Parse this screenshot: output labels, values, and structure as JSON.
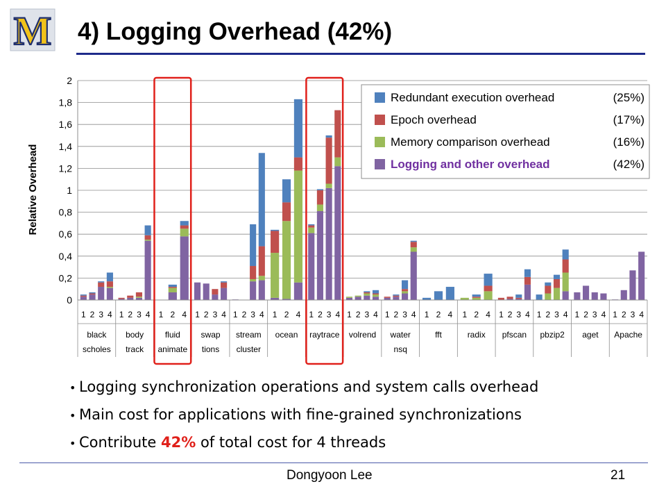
{
  "slide": {
    "title": "4) Logging Overhead (42%)",
    "logo_text": "M",
    "bullets": [
      {
        "pre": "Logging synchronization operations and system calls overhead",
        "hl": "",
        "post": ""
      },
      {
        "pre": "Main cost for applications with fine-grained synchronizations",
        "hl": "",
        "post": ""
      },
      {
        "pre": "Contribute ",
        "hl": "42%",
        "post": " of total cost for 4 threads"
      }
    ],
    "footer_author": "Dongyoon Lee",
    "page_number": "21"
  },
  "colors": {
    "redundant": "#4f81bd",
    "epoch": "#c0504d",
    "memory": "#9bbb59",
    "logging": "#8064a2",
    "logging_label": "#7030a0",
    "highlight_box": "#e0201a",
    "accent_rule": "#1e2a8a"
  },
  "chart_data": {
    "type": "bar",
    "stacked": true,
    "ylabel": "Relative Overhead",
    "ylim": [
      0,
      2
    ],
    "yticks": [
      "0",
      "0,2",
      "0,4",
      "0,6",
      "0,8",
      "1",
      "1,2",
      "1,4",
      "1,6",
      "1,8",
      "2"
    ],
    "legend": [
      {
        "key": "redundant",
        "label": "Redundant execution overhead",
        "pct": "(25%)"
      },
      {
        "key": "epoch",
        "label": "Epoch overhead",
        "pct": "(17%)"
      },
      {
        "key": "memory",
        "label": "Memory comparison overhead",
        "pct": "(16%)"
      },
      {
        "key": "logging",
        "label": "Logging and other overhead",
        "pct": "(42%)"
      }
    ],
    "series_order": [
      "logging",
      "memory",
      "epoch",
      "redundant"
    ],
    "highlighted_groups": [
      "fluid animate",
      "raytrace"
    ],
    "groups": [
      {
        "name": "black scholes",
        "line1": "black",
        "line2": "scholes",
        "bars": [
          {
            "label": "1",
            "logging": 0.03,
            "memory": 0.0,
            "epoch": 0.01,
            "redundant": 0.01
          },
          {
            "label": "2",
            "logging": 0.05,
            "memory": 0.0,
            "epoch": 0.01,
            "redundant": 0.01
          },
          {
            "label": "3",
            "logging": 0.12,
            "memory": 0.0,
            "epoch": 0.04,
            "redundant": 0.01
          },
          {
            "label": "4",
            "logging": 0.11,
            "memory": 0.01,
            "epoch": 0.05,
            "redundant": 0.08
          }
        ]
      },
      {
        "name": "body track",
        "line1": "body",
        "line2": "track",
        "bars": [
          {
            "label": "1",
            "logging": 0.01,
            "memory": 0.0,
            "epoch": 0.01,
            "redundant": 0.0
          },
          {
            "label": "2",
            "logging": 0.02,
            "memory": 0.0,
            "epoch": 0.02,
            "redundant": 0.0
          },
          {
            "label": "3",
            "logging": 0.02,
            "memory": 0.01,
            "epoch": 0.04,
            "redundant": 0.0
          },
          {
            "label": "4",
            "logging": 0.54,
            "memory": 0.01,
            "epoch": 0.04,
            "redundant": 0.09
          }
        ]
      },
      {
        "name": "fluid animate",
        "line1": "fluid",
        "line2": "animate",
        "bars": [
          {
            "label": "1",
            "logging": 0.0,
            "memory": 0.0,
            "epoch": 0.0,
            "redundant": 0.0
          },
          {
            "label": "2",
            "logging": 0.07,
            "memory": 0.04,
            "epoch": 0.01,
            "redundant": 0.02
          },
          {
            "label": "4",
            "logging": 0.58,
            "memory": 0.07,
            "epoch": 0.03,
            "redundant": 0.04
          }
        ]
      },
      {
        "name": "swap tions",
        "line1": "swap",
        "line2": "tions",
        "bars": [
          {
            "label": "1",
            "logging": 0.16,
            "memory": 0.0,
            "epoch": 0.0,
            "redundant": 0.0
          },
          {
            "label": "2",
            "logging": 0.15,
            "memory": 0.0,
            "epoch": 0.0,
            "redundant": 0.0
          },
          {
            "label": "3",
            "logging": 0.05,
            "memory": 0.0,
            "epoch": 0.05,
            "redundant": 0.0
          },
          {
            "label": "4",
            "logging": 0.11,
            "memory": 0.0,
            "epoch": 0.05,
            "redundant": 0.01
          }
        ]
      },
      {
        "name": "stream cluster",
        "line1": "stream",
        "line2": "cluster",
        "bars": [
          {
            "label": "1",
            "logging": 0.005,
            "memory": 0.0,
            "epoch": 0.0,
            "redundant": 0.0
          },
          {
            "label": "2",
            "logging": 0.0,
            "memory": 0.0,
            "epoch": 0.0,
            "redundant": 0.0
          },
          {
            "label": "3",
            "logging": 0.17,
            "memory": 0.02,
            "epoch": 0.12,
            "redundant": 0.38
          },
          {
            "label": "4",
            "logging": 0.18,
            "memory": 0.04,
            "epoch": 0.27,
            "redundant": 0.85
          }
        ]
      },
      {
        "name": "ocean",
        "line1": "ocean",
        "line2": "",
        "bars": [
          {
            "label": "1",
            "logging": 0.02,
            "memory": 0.41,
            "epoch": 0.2,
            "redundant": 0.01
          },
          {
            "label": "2",
            "logging": 0.01,
            "memory": 0.71,
            "epoch": 0.17,
            "redundant": 0.21
          },
          {
            "label": "4",
            "logging": 0.16,
            "memory": 1.02,
            "epoch": 0.12,
            "redundant": 0.53
          }
        ]
      },
      {
        "name": "raytrace",
        "line1": "raytrace",
        "line2": "",
        "bars": [
          {
            "label": "1",
            "logging": 0.61,
            "memory": 0.05,
            "epoch": 0.02,
            "redundant": 0.01
          },
          {
            "label": "2",
            "logging": 0.81,
            "memory": 0.06,
            "epoch": 0.13,
            "redundant": 0.01
          },
          {
            "label": "3",
            "logging": 1.02,
            "memory": 0.04,
            "epoch": 0.42,
            "redundant": 0.02
          },
          {
            "label": "4",
            "logging": 1.22,
            "memory": 0.08,
            "epoch": 0.43,
            "redundant": 0.0
          }
        ]
      },
      {
        "name": "volrend",
        "line1": "volrend",
        "line2": "",
        "bars": [
          {
            "label": "1",
            "logging": 0.02,
            "memory": 0.01,
            "epoch": 0.0,
            "redundant": 0.0
          },
          {
            "label": "2",
            "logging": 0.03,
            "memory": 0.01,
            "epoch": 0.0,
            "redundant": 0.0
          },
          {
            "label": "3",
            "logging": 0.04,
            "memory": 0.02,
            "epoch": 0.01,
            "redundant": 0.01
          },
          {
            "label": "4",
            "logging": 0.03,
            "memory": 0.02,
            "epoch": 0.01,
            "redundant": 0.03
          }
        ]
      },
      {
        "name": "water nsq",
        "line1": "water",
        "line2": "nsq",
        "bars": [
          {
            "label": "1",
            "logging": 0.02,
            "memory": 0.0,
            "epoch": 0.01,
            "redundant": 0.0
          },
          {
            "label": "2",
            "logging": 0.03,
            "memory": 0.0,
            "epoch": 0.01,
            "redundant": 0.01
          },
          {
            "label": "3",
            "logging": 0.06,
            "memory": 0.02,
            "epoch": 0.02,
            "redundant": 0.08
          },
          {
            "label": "4",
            "logging": 0.44,
            "memory": 0.04,
            "epoch": 0.05,
            "redundant": 0.01
          }
        ]
      },
      {
        "name": "fft",
        "line1": "fft",
        "line2": "",
        "bars": [
          {
            "label": "1",
            "logging": 0.0,
            "memory": 0.0,
            "epoch": 0.0,
            "redundant": 0.02
          },
          {
            "label": "2",
            "logging": 0.0,
            "memory": 0.0,
            "epoch": 0.0,
            "redundant": 0.08
          },
          {
            "label": "4",
            "logging": 0.0,
            "memory": 0.0,
            "epoch": 0.0,
            "redundant": 0.12
          }
        ]
      },
      {
        "name": "radix",
        "line1": "radix",
        "line2": "",
        "bars": [
          {
            "label": "1",
            "logging": 0.0,
            "memory": 0.02,
            "epoch": 0.0,
            "redundant": 0.0
          },
          {
            "label": "2",
            "logging": 0.0,
            "memory": 0.02,
            "epoch": 0.01,
            "redundant": 0.02
          },
          {
            "label": "4",
            "logging": 0.0,
            "memory": 0.08,
            "epoch": 0.05,
            "redundant": 0.11
          }
        ]
      },
      {
        "name": "pfscan",
        "line1": "pfscan",
        "line2": "",
        "bars": [
          {
            "label": "1",
            "logging": 0.0,
            "memory": 0.0,
            "epoch": 0.02,
            "redundant": 0.0
          },
          {
            "label": "2",
            "logging": 0.01,
            "memory": 0.0,
            "epoch": 0.02,
            "redundant": 0.0
          },
          {
            "label": "3",
            "logging": 0.01,
            "memory": 0.0,
            "epoch": 0.01,
            "redundant": 0.03
          },
          {
            "label": "4",
            "logging": 0.14,
            "memory": 0.0,
            "epoch": 0.07,
            "redundant": 0.07
          }
        ]
      },
      {
        "name": "pbzip2",
        "line1": "pbzip2",
        "line2": "",
        "bars": [
          {
            "label": "1",
            "logging": 0.0,
            "memory": 0.0,
            "epoch": 0.0,
            "redundant": 0.05
          },
          {
            "label": "2",
            "logging": 0.0,
            "memory": 0.06,
            "epoch": 0.07,
            "redundant": 0.03
          },
          {
            "label": "3",
            "logging": 0.0,
            "memory": 0.11,
            "epoch": 0.08,
            "redundant": 0.04
          },
          {
            "label": "4",
            "logging": 0.08,
            "memory": 0.17,
            "epoch": 0.12,
            "redundant": 0.09
          }
        ]
      },
      {
        "name": "aget",
        "line1": "aget",
        "line2": "",
        "bars": [
          {
            "label": "1",
            "logging": 0.07,
            "memory": 0.0,
            "epoch": 0.0,
            "redundant": 0.0
          },
          {
            "label": "2",
            "logging": 0.13,
            "memory": 0.0,
            "epoch": 0.0,
            "redundant": 0.0
          },
          {
            "label": "3",
            "logging": 0.07,
            "memory": 0.0,
            "epoch": 0.0,
            "redundant": 0.0
          },
          {
            "label": "4",
            "logging": 0.06,
            "memory": 0.0,
            "epoch": 0.0,
            "redundant": 0.0
          }
        ]
      },
      {
        "name": "Apache",
        "line1": "Apache",
        "line2": "",
        "bars": [
          {
            "label": "1",
            "logging": 0.005,
            "memory": 0.0,
            "epoch": 0.0,
            "redundant": 0.0
          },
          {
            "label": "2",
            "logging": 0.09,
            "memory": 0.0,
            "epoch": 0.0,
            "redundant": 0.0
          },
          {
            "label": "3",
            "logging": 0.27,
            "memory": 0.0,
            "epoch": 0.0,
            "redundant": 0.0
          },
          {
            "label": "4",
            "logging": 0.44,
            "memory": 0.0,
            "epoch": 0.0,
            "redundant": 0.0
          }
        ]
      }
    ]
  }
}
